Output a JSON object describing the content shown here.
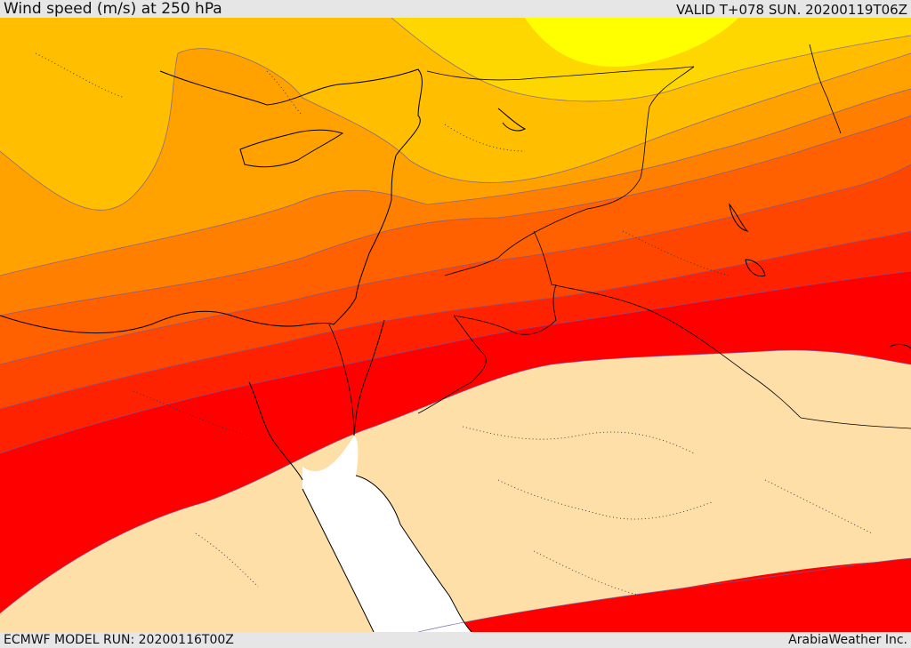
{
  "header": {
    "title": "Wind speed (m/s) at 250 hPa",
    "valid_time": "VALID T+078 SUN. 20200119T06Z"
  },
  "footer": {
    "model_run": "ECMWF MODEL RUN: 20200116T00Z",
    "credit": "ArabiaWeather Inc."
  },
  "map": {
    "colors": {
      "band_lightest": "#ffff00",
      "band_1": "#ffd700",
      "band_2": "#ffbe00",
      "band_3": "#ffa200",
      "band_4": "#ff8000",
      "band_5": "#ff6000",
      "band_6": "#ff4600",
      "band_7": "#ff2200",
      "band_8": "#ff0000",
      "calm_area": "#ffdfa8",
      "sea_uncovered": "#ffffff",
      "contour_line": "#5555aa",
      "coastline": "#000000"
    }
  }
}
